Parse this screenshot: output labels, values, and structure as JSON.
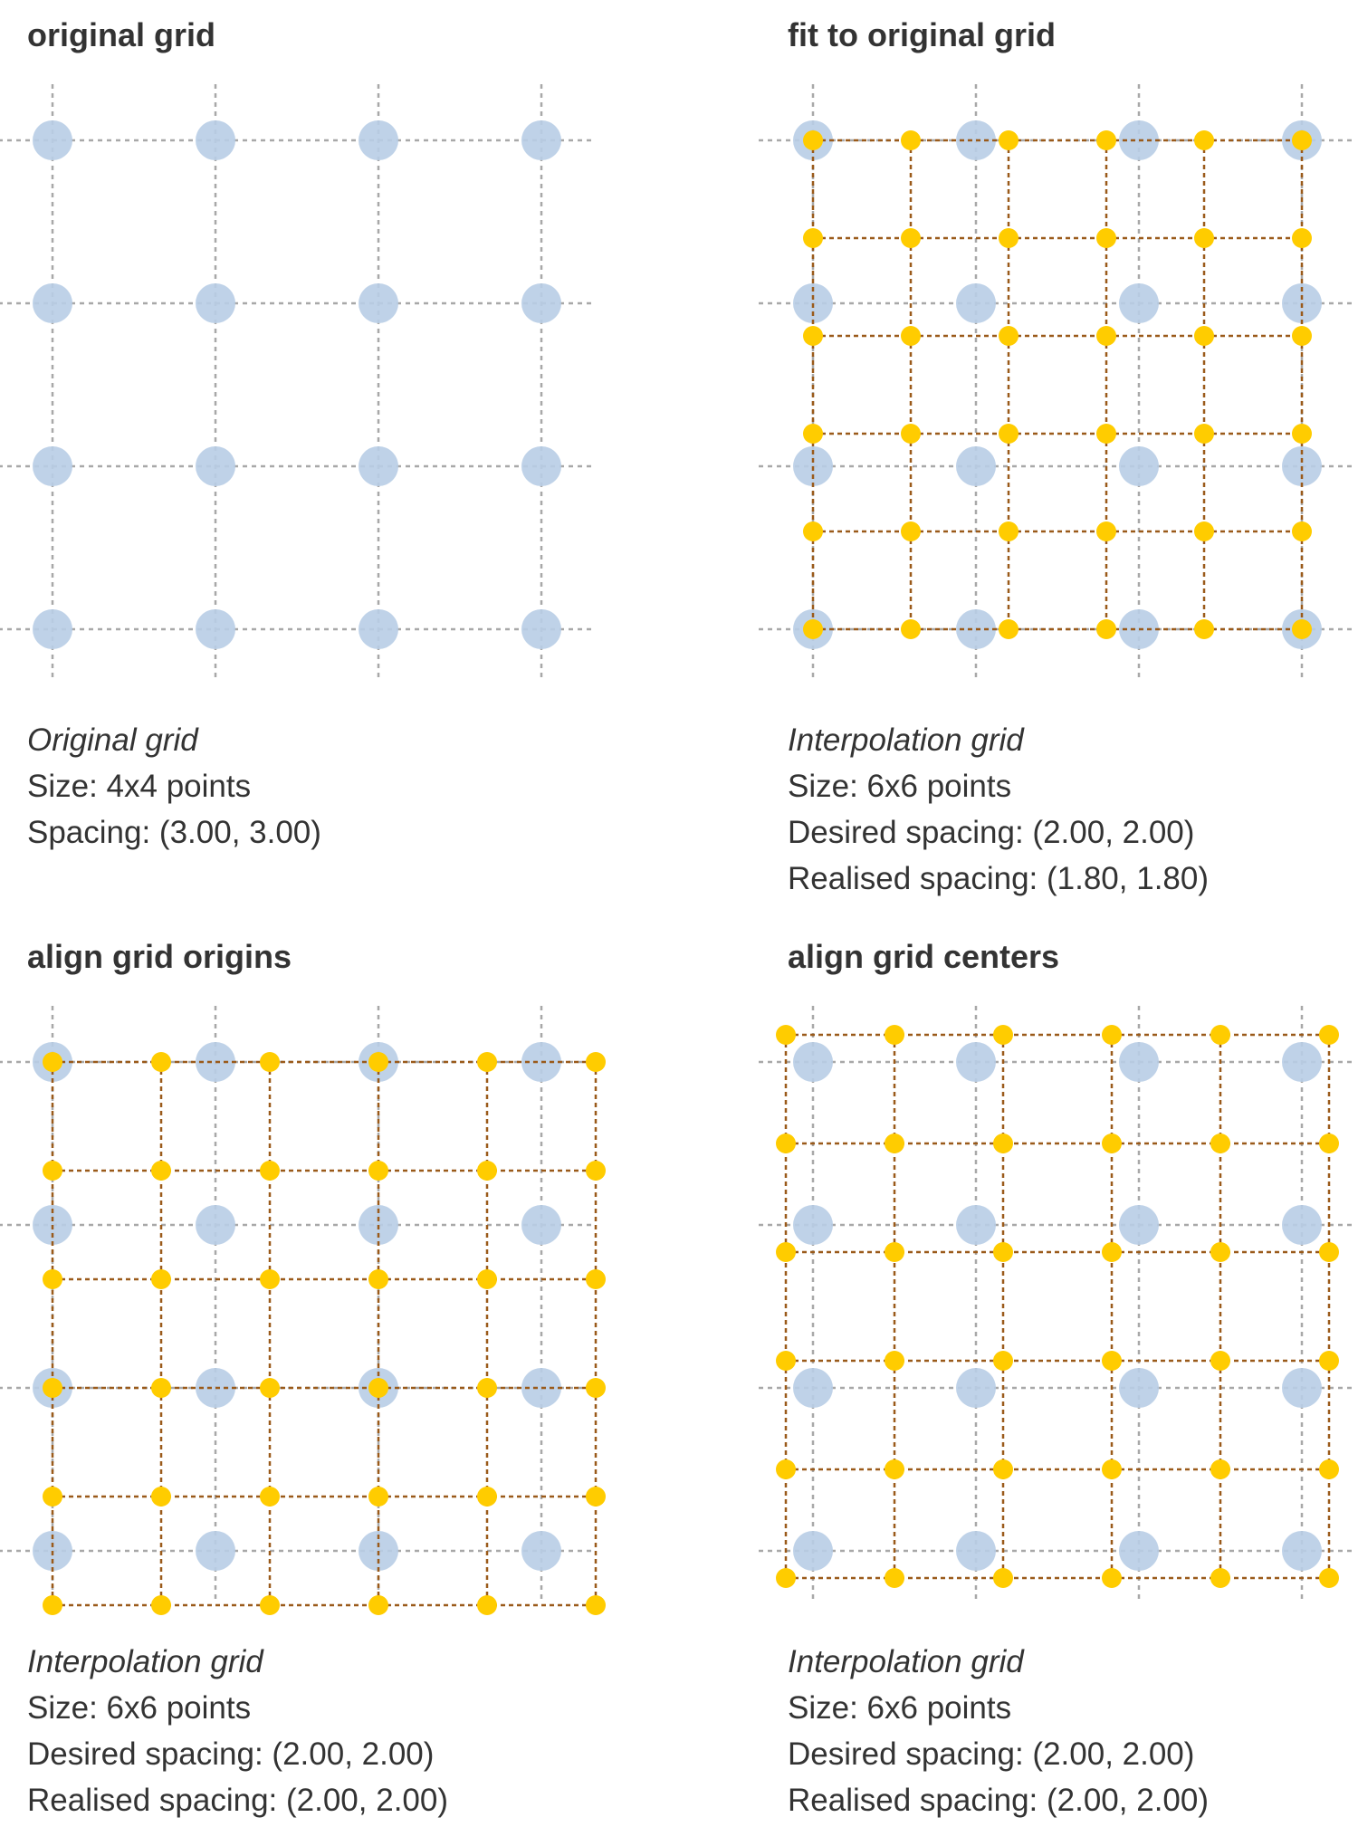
{
  "colors": {
    "original_point": "#b8cde6",
    "original_line": "#a8a8a8",
    "interp_point": "#ffcc00",
    "interp_line": "#9a5a1a",
    "text": "#333333"
  },
  "panels": [
    {
      "title": "original grid",
      "original_grid": {
        "size": [
          4,
          4
        ],
        "spacing": [
          3.0,
          3.0
        ],
        "origin": [
          0,
          0
        ]
      },
      "interpolation_grid": null,
      "caption": {
        "heading": "Original grid",
        "size": "Size: 4x4 points",
        "spacing": "Spacing: (3.00, 3.00)"
      }
    },
    {
      "title": "fit to original grid",
      "original_grid": {
        "size": [
          4,
          4
        ],
        "spacing": [
          3.0,
          3.0
        ],
        "origin": [
          0,
          0
        ]
      },
      "interpolation_grid": {
        "size": [
          6,
          6
        ],
        "spacing": [
          1.8,
          1.8
        ],
        "origin": [
          0,
          0
        ]
      },
      "caption": {
        "heading": "Interpolation grid",
        "size": "Size: 6x6 points",
        "desired": "Desired spacing: (2.00, 2.00)",
        "realised": "Realised spacing: (1.80, 1.80)"
      }
    },
    {
      "title": "align grid origins",
      "original_grid": {
        "size": [
          4,
          4
        ],
        "spacing": [
          3.0,
          3.0
        ],
        "origin": [
          0,
          0
        ]
      },
      "interpolation_grid": {
        "size": [
          6,
          6
        ],
        "spacing": [
          2.0,
          2.0
        ],
        "origin": [
          0,
          0
        ]
      },
      "caption": {
        "heading": "Interpolation grid",
        "size": "Size: 6x6 points",
        "desired": "Desired spacing: (2.00, 2.00)",
        "realised": "Realised spacing: (2.00, 2.00)"
      }
    },
    {
      "title": "align grid centers",
      "original_grid": {
        "size": [
          4,
          4
        ],
        "spacing": [
          3.0,
          3.0
        ],
        "origin": [
          0,
          0
        ]
      },
      "interpolation_grid": {
        "size": [
          6,
          6
        ],
        "spacing": [
          2.0,
          2.0
        ],
        "origin": [
          -0.5,
          -0.5
        ]
      },
      "caption": {
        "heading": "Interpolation grid",
        "size": "Size: 6x6 points",
        "desired": "Desired spacing: (2.00, 2.00)",
        "realised": "Realised spacing: (2.00, 2.00)"
      }
    }
  ]
}
